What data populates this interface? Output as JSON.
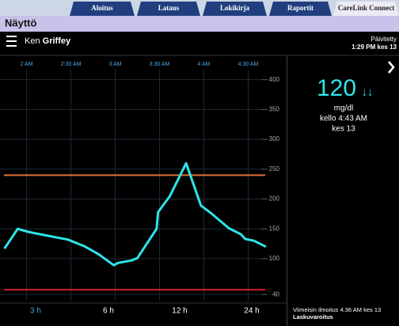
{
  "tabs": [
    "Aloitus",
    "Lataus",
    "Lokikirja",
    "Raportit",
    "CareLink Connect"
  ],
  "active_tab": 4,
  "page_title": "Näyttö",
  "user": {
    "first_name": "Ken",
    "last_name": "Griffey"
  },
  "updated": {
    "label": "Päivitetty",
    "time": "1:29 PM kes 13"
  },
  "chart_data": {
    "type": "line",
    "color": "#2ee3e8",
    "grid": true,
    "x": [
      105,
      114,
      121,
      129,
      148,
      159,
      169,
      179,
      182,
      191,
      195,
      208,
      209,
      217,
      228,
      238,
      245,
      257,
      265,
      268,
      274,
      282
    ],
    "values": [
      117,
      150,
      145,
      141,
      132,
      121,
      107,
      89,
      93,
      97,
      101,
      150,
      178,
      205,
      260,
      189,
      176,
      151,
      141,
      133,
      130,
      120
    ],
    "xlim": [
      102,
      296
    ],
    "ylim": [
      23,
      438
    ],
    "xticks": [
      {
        "value": 120,
        "label": "2 AM"
      },
      {
        "value": 150,
        "label": "2:30 AM"
      },
      {
        "value": 180,
        "label": "3 AM"
      },
      {
        "value": 210,
        "label": "3:30 AM"
      },
      {
        "value": 240,
        "label": "4 AM"
      },
      {
        "value": 270,
        "label": "4:30 AM"
      }
    ],
    "yticks": [
      40,
      100,
      150,
      200,
      250,
      300,
      350,
      400
    ],
    "reference_lines": [
      {
        "value": 240,
        "color": "#e0703a"
      },
      {
        "value": 48,
        "color": "#d01f2a"
      }
    ]
  },
  "range_buttons": [
    "3 h",
    "6 h",
    "12 h",
    "24 h"
  ],
  "active_range": 0,
  "reading": {
    "value": 120,
    "trend": "↓↓",
    "unit": "mg/dl",
    "time": "kello 4:43 AM",
    "date": "kes 13"
  },
  "last_alert": {
    "text": "Viimeisin ilmoitus 4.36 AM kes 13",
    "type": "Laskuvaroitus"
  }
}
